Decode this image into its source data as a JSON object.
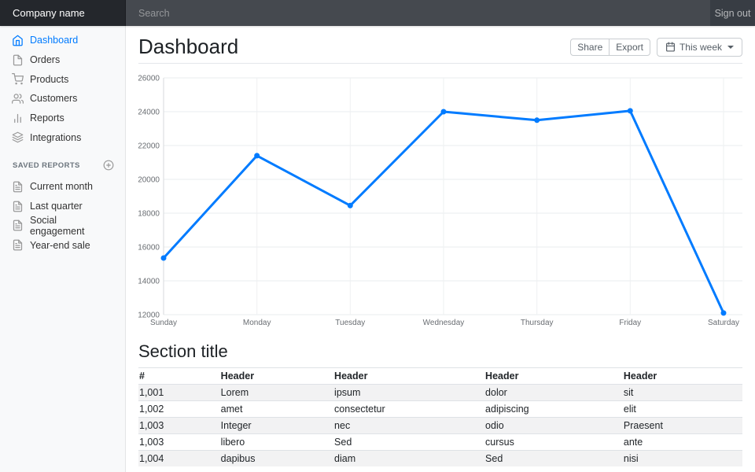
{
  "navbar": {
    "brand": "Company name",
    "search_placeholder": "Search",
    "sign_out_label": "Sign out"
  },
  "sidebar": {
    "items": [
      {
        "label": "Dashboard",
        "icon": "home",
        "active": true
      },
      {
        "label": "Orders",
        "icon": "file",
        "active": false
      },
      {
        "label": "Products",
        "icon": "shopping-cart",
        "active": false
      },
      {
        "label": "Customers",
        "icon": "users",
        "active": false
      },
      {
        "label": "Reports",
        "icon": "bar-chart-2",
        "active": false
      },
      {
        "label": "Integrations",
        "icon": "layers",
        "active": false
      }
    ],
    "saved_reports": {
      "heading": "SAVED REPORTS",
      "add_icon": "plus-circle",
      "items": [
        {
          "label": "Current month",
          "icon": "file-text"
        },
        {
          "label": "Last quarter",
          "icon": "file-text"
        },
        {
          "label": "Social engagement",
          "icon": "file-text"
        },
        {
          "label": "Year-end sale",
          "icon": "file-text"
        }
      ]
    }
  },
  "main": {
    "title": "Dashboard",
    "toolbar": {
      "share_label": "Share",
      "export_label": "Export",
      "period_label": "This week",
      "period_icon": "calendar"
    },
    "section_title": "Section title",
    "table": {
      "headers": [
        "#",
        "Header",
        "Header",
        "Header",
        "Header"
      ],
      "rows": [
        [
          "1,001",
          "Lorem",
          "ipsum",
          "dolor",
          "sit"
        ],
        [
          "1,002",
          "amet",
          "consectetur",
          "adipiscing",
          "elit"
        ],
        [
          "1,003",
          "Integer",
          "nec",
          "odio",
          "Praesent"
        ],
        [
          "1,003",
          "libero",
          "Sed",
          "cursus",
          "ante"
        ],
        [
          "1,004",
          "dapibus",
          "diam",
          "Sed",
          "nisi"
        ]
      ]
    }
  },
  "colors": {
    "accent": "#007bff",
    "navbar_bg": "#343a40",
    "brand_bg": "#24272c",
    "sidebar_bg": "#f8f9fa",
    "grid_line": "#e9ecef"
  },
  "chart_data": {
    "type": "line",
    "title": "",
    "xlabel": "",
    "ylabel": "",
    "x": [
      "Sunday",
      "Monday",
      "Tuesday",
      "Wednesday",
      "Thursday",
      "Friday",
      "Saturday"
    ],
    "series": [
      {
        "name": "this-week",
        "values": [
          15350,
          21400,
          18450,
          24000,
          23500,
          24050,
          12100
        ]
      }
    ],
    "ylim": [
      12000,
      26000
    ],
    "yticks": [
      12000,
      14000,
      16000,
      18000,
      20000,
      22000,
      24000,
      26000
    ],
    "grid": true,
    "legend": false,
    "line_color": "#007bff",
    "point_radius": 3.5
  }
}
